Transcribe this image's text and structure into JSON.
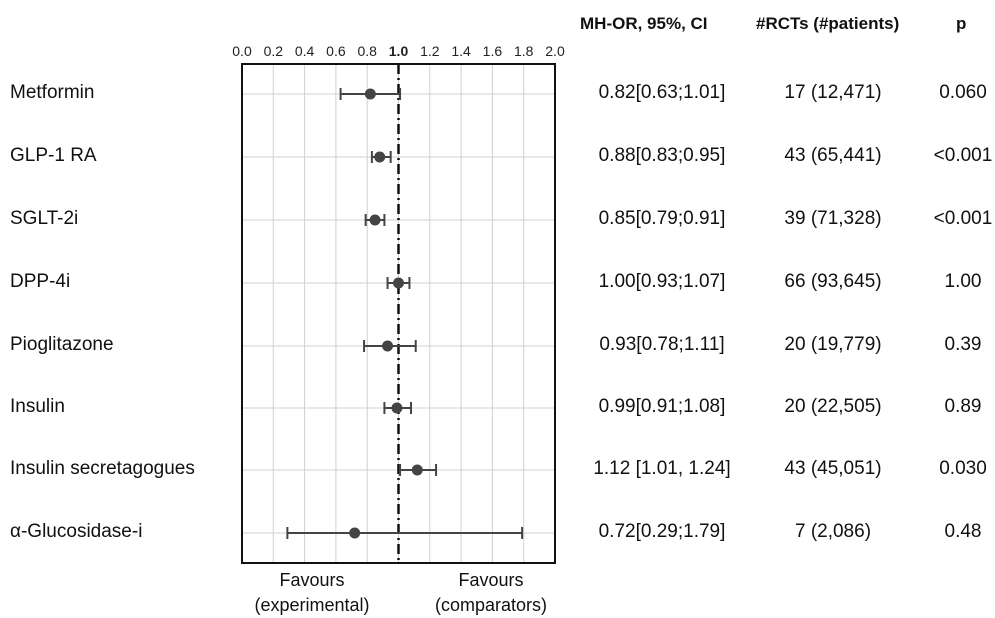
{
  "headers": {
    "or": "MH-OR, 95%, CI",
    "rcts": "#RCTs (#patients)",
    "p": "p"
  },
  "favours": {
    "left_line1": "Favours",
    "left_line2": "(experimental)",
    "right_line1": "Favours",
    "right_line2": "(comparators)"
  },
  "chart_data": {
    "type": "scatter",
    "subtype": "forest-plot",
    "xlim": [
      0.0,
      2.0
    ],
    "x_ticks": [
      "0.0",
      "0.2",
      "0.4",
      "0.6",
      "0.8",
      "1.0",
      "1.2",
      "1.4",
      "1.6",
      "1.8",
      "2.0"
    ],
    "bold_tick": "1.0",
    "reference_line": 1.0,
    "grid": true,
    "rows": [
      {
        "label": "Metformin",
        "or": 0.82,
        "lo": 0.63,
        "hi": 1.01,
        "or_text": "0.82[0.63;1.01]",
        "rcts": "17 (12,471)",
        "p": "0.060"
      },
      {
        "label": "GLP-1 RA",
        "or": 0.88,
        "lo": 0.83,
        "hi": 0.95,
        "or_text": "0.88[0.83;0.95]",
        "rcts": "43 (65,441)",
        "p": "<0.001"
      },
      {
        "label": "SGLT-2i",
        "or": 0.85,
        "lo": 0.79,
        "hi": 0.91,
        "or_text": "0.85[0.79;0.91]",
        "rcts": "39 (71,328)",
        "p": "<0.001"
      },
      {
        "label": "DPP-4i",
        "or": 1.0,
        "lo": 0.93,
        "hi": 1.07,
        "or_text": "1.00[0.93;1.07]",
        "rcts": "66 (93,645)",
        "p": "1.00"
      },
      {
        "label": "Pioglitazone",
        "or": 0.93,
        "lo": 0.78,
        "hi": 1.11,
        "or_text": "0.93[0.78;1.11]",
        "rcts": "20 (19,779)",
        "p": "0.39"
      },
      {
        "label": "Insulin",
        "or": 0.99,
        "lo": 0.91,
        "hi": 1.08,
        "or_text": "0.99[0.91;1.08]",
        "rcts": "20 (22,505)",
        "p": "0.89"
      },
      {
        "label": "Insulin secretagogues",
        "or": 1.12,
        "lo": 1.01,
        "hi": 1.24,
        "or_text": "1.12 [1.01, 1.24]",
        "rcts": "43 (45,051)",
        "p": "0.030"
      },
      {
        "label": "α-Glucosidase-i",
        "or": 0.72,
        "lo": 0.29,
        "hi": 1.79,
        "or_text": "0.72[0.29;1.79]",
        "rcts": "7 (2,086)",
        "p": "0.48"
      }
    ]
  }
}
